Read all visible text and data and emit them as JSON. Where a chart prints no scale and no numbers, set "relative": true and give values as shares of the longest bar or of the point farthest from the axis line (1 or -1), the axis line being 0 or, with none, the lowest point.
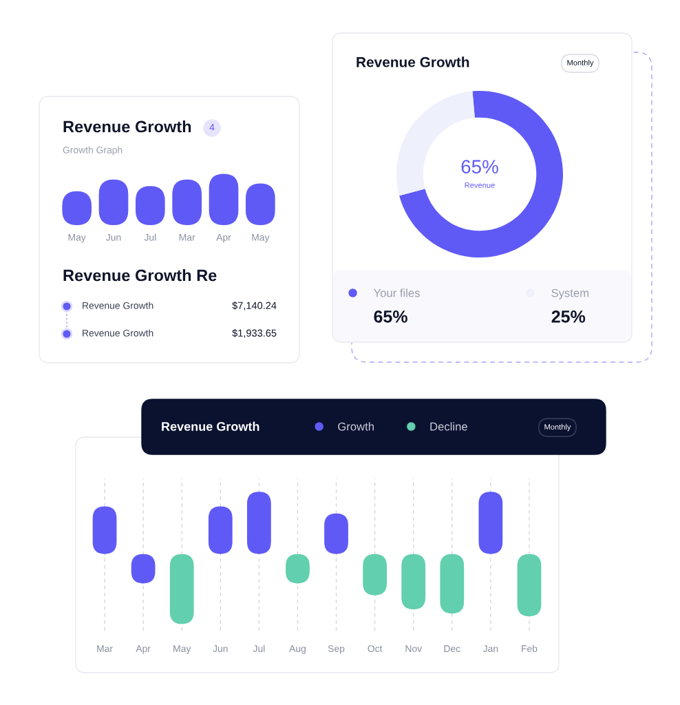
{
  "chart_data": [
    {
      "type": "bar",
      "title": "Revenue Growth",
      "subtitle": "Growth Graph",
      "annotations": [
        "4"
      ],
      "categories": [
        "May",
        "Jun",
        "Jul",
        "Mar",
        "Apr",
        "May"
      ],
      "values": [
        0.66,
        0.89,
        0.76,
        0.89,
        1,
        0.81
      ],
      "color": "#5f5af6",
      "relative": true
    },
    {
      "type": "other",
      "title": "Revenue Growth Re",
      "annotations": [
        "Revenue Growth",
        "$7,140.24",
        "Revenue Growth",
        "$1,933.65"
      ]
    },
    {
      "type": "donut",
      "title": "Revenue Growth",
      "categories": [
        "Your files",
        "System"
      ],
      "values": [
        65,
        25
      ],
      "colors": [
        "#5f5af6",
        "#eef0fb"
      ],
      "value_labels": [
        "65%",
        "25%"
      ],
      "legend": "bottom",
      "annotations": [
        "65%",
        "Revenue",
        "Monthly"
      ]
    },
    {
      "type": "bar",
      "title": "Revenue Growth",
      "categories": [
        "Mar",
        "Apr",
        "May",
        "Jun",
        "Jul",
        "Aug",
        "Sep",
        "Oct",
        "Nov",
        "Dec",
        "Jan",
        "Feb"
      ],
      "series": [
        {
          "name": "Growth",
          "color": "#5f5af6",
          "values": [
            0.68,
            -0.42,
            null,
            0.68,
            0.89,
            null,
            0.58,
            null,
            null,
            null,
            0.89,
            null
          ]
        },
        {
          "name": "Decline",
          "color": "#62cfae",
          "values": [
            null,
            null,
            -1,
            null,
            null,
            -0.42,
            null,
            -0.59,
            -0.79,
            -0.85,
            null,
            -0.89
          ]
        }
      ],
      "relative": true,
      "grid": "x",
      "legend": "top",
      "annotations": [
        "Monthly"
      ]
    }
  ]
}
